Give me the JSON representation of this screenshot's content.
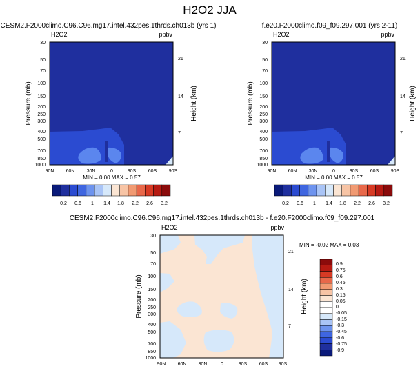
{
  "title": "H2O2 JJA",
  "colors": {
    "deep_blue": "#1f2f9e",
    "mid_blue": "#2b4bd1",
    "light_blue": "#5b86ee",
    "pale_blue": "#d6e8fa",
    "pale_orange": "#fbe5d3",
    "dark_red": "#8b0b0b"
  },
  "chart_data": [
    {
      "type": "heatmap",
      "title": "CESM2.F2000climo.C96.C96.mg17.intel.432pes.1thrds.ch013b (yrs 1)",
      "variable": "H2O2",
      "units": "ppbv",
      "ylabel": "Pressure (mb)",
      "ylabel_right": "Height (km)",
      "x_ticks": [
        "90N",
        "60N",
        "30N",
        "0",
        "30S",
        "60S",
        "90S"
      ],
      "y_ticks": [
        "30",
        "50",
        "70",
        "100",
        "150",
        "200",
        "250",
        "300",
        "400",
        "500",
        "700",
        "850",
        "1000"
      ],
      "y_ticks_right": [
        "21",
        "14",
        "7"
      ],
      "ylim": [
        1000,
        30
      ],
      "y_scale": "log",
      "stats": "MIN =  0.00  MAX =  0.57",
      "colorbar_labels": [
        "0.2",
        "0.6",
        "1",
        "1.4",
        "1.8",
        "2.2",
        "2.6",
        "3.2"
      ]
    },
    {
      "type": "heatmap",
      "title": "f.e20.F2000climo.f09_f09.297.001 (yrs 2-11)",
      "variable": "H2O2",
      "units": "ppbv",
      "ylabel": "Pressure (mb)",
      "ylabel_right": "Height (km)",
      "x_ticks": [
        "90N",
        "60N",
        "30N",
        "0",
        "30S",
        "60S",
        "90S"
      ],
      "y_ticks": [
        "30",
        "50",
        "70",
        "100",
        "150",
        "200",
        "250",
        "300",
        "400",
        "500",
        "700",
        "850",
        "1000"
      ],
      "y_ticks_right": [
        "21",
        "14",
        "7"
      ],
      "ylim": [
        1000,
        30
      ],
      "y_scale": "log",
      "stats": "MIN =  0.00  MAX =  0.57",
      "colorbar_labels": [
        "0.2",
        "0.6",
        "1",
        "1.4",
        "1.8",
        "2.2",
        "2.6",
        "3.2"
      ]
    },
    {
      "type": "heatmap",
      "title": "CESM2.F2000climo.C96.C96.mg17.intel.432pes.1thrds.ch013b - f.e20.F2000climo.f09_f09.297.001",
      "variable": "H2O2",
      "units": "ppbv",
      "ylabel": "Pressure (mb)",
      "ylabel_right": "Height (km)",
      "x_ticks": [
        "90N",
        "60N",
        "30N",
        "0",
        "30S",
        "60S",
        "90S"
      ],
      "y_ticks": [
        "30",
        "50",
        "70",
        "100",
        "150",
        "200",
        "250",
        "300",
        "400",
        "500",
        "700",
        "850",
        "1000"
      ],
      "y_ticks_right": [
        "21",
        "14",
        "7"
      ],
      "ylim": [
        1000,
        30
      ],
      "y_scale": "log",
      "stats": "MIN = -0.02  MAX =  0.03",
      "colorbar_labels": [
        "0.9",
        "0.75",
        "0.6",
        "0.45",
        "0.3",
        "0.15",
        "0.05",
        "0",
        "-0.05",
        "-0.15",
        "-0.3",
        "-0.45",
        "-0.6",
        "-0.75",
        "-0.9"
      ]
    }
  ]
}
